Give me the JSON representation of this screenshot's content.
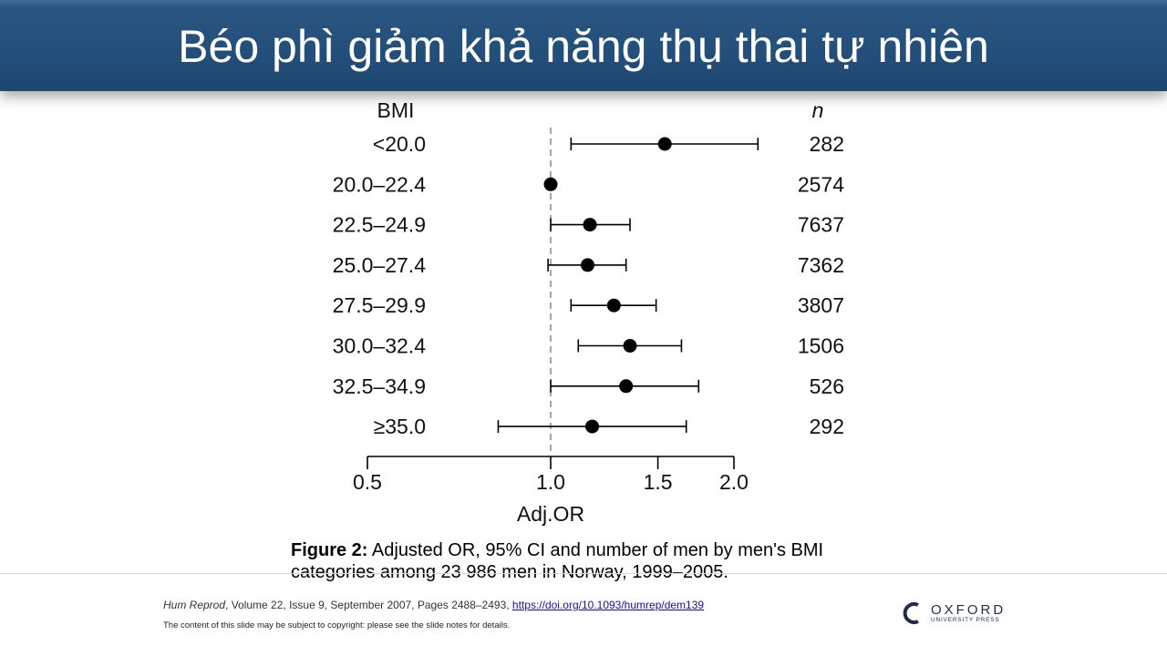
{
  "slide": {
    "title": "Béo phì giảm khả năng thụ thai tự nhiên",
    "caption_label": "Figure 2:",
    "caption_text": " Adjusted OR, 95% CI and number  of men by men's BMI categories among 23 986 men in Norway, 1999–2005.",
    "citation_journal": "Hum Reprod",
    "citation_details": ", Volume 22, Issue 9, September 2007, Pages 2488–2493, ",
    "citation_link": "https://doi.org/10.1093/humrep/dem139",
    "copyright": "The content of this slide may be subject to copyright: please see the slide notes for details.",
    "logo_name": "OXFORD",
    "logo_sub": "UNIVERSITY PRESS"
  },
  "chart_data": {
    "type": "scatter",
    "subtype": "forest",
    "row_header": "BMI",
    "n_header": "n",
    "xlabel": "Adj.OR",
    "xscale": "log",
    "xlim": [
      0.5,
      2.0
    ],
    "xticks": [
      "0.5",
      "1.0",
      "1.5",
      "2.0"
    ],
    "xtick_values": [
      0.5,
      1.0,
      1.5,
      2.0
    ],
    "reference_line": 1.0,
    "rows": [
      {
        "label": "<20.0",
        "or": 1.54,
        "lo": 1.08,
        "hi": 2.19,
        "n": "282"
      },
      {
        "label": "20.0–22.4",
        "or": 1.0,
        "lo": null,
        "hi": null,
        "n": "2574"
      },
      {
        "label": "22.5–24.9",
        "or": 1.16,
        "lo": 1.0,
        "hi": 1.35,
        "n": "7637"
      },
      {
        "label": "25.0–27.4",
        "or": 1.15,
        "lo": 0.99,
        "hi": 1.33,
        "n": "7362"
      },
      {
        "label": "27.5–29.9",
        "or": 1.27,
        "lo": 1.08,
        "hi": 1.49,
        "n": "3807"
      },
      {
        "label": "30.0–32.4",
        "or": 1.35,
        "lo": 1.11,
        "hi": 1.64,
        "n": "1506"
      },
      {
        "label": "32.5–34.9",
        "or": 1.33,
        "lo": 1.0,
        "hi": 1.75,
        "n": "526"
      },
      {
        "label": "≥35.0",
        "or": 1.17,
        "lo": 0.82,
        "hi": 1.67,
        "n": "292"
      }
    ],
    "colors": {
      "marker": "#000000",
      "refline": "#888888"
    }
  }
}
